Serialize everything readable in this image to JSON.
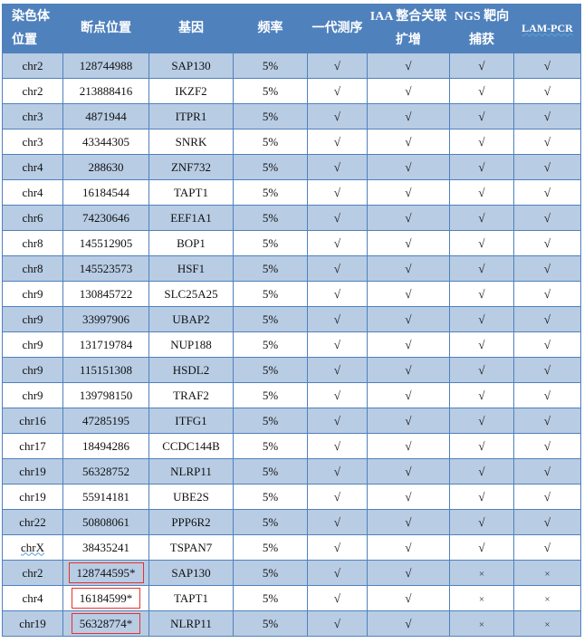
{
  "headers": [
    "染色体位置",
    "断点位置",
    "基因",
    "频率",
    "一代测序",
    "IAA 整合关联扩增",
    "NGS 靶向捕获",
    "LAM-PCR"
  ],
  "rows": [
    {
      "chr": "chr2",
      "pos": "128744988",
      "gene": "SAP130",
      "freq": "5%",
      "m": [
        "√",
        "√",
        "√",
        "√"
      ]
    },
    {
      "chr": "chr2",
      "pos": "213888416",
      "gene": "IKZF2",
      "freq": "5%",
      "m": [
        "√",
        "√",
        "√",
        "√"
      ]
    },
    {
      "chr": "chr3",
      "pos": "4871944",
      "gene": "ITPR1",
      "freq": "5%",
      "m": [
        "√",
        "√",
        "√",
        "√"
      ]
    },
    {
      "chr": "chr3",
      "pos": "43344305",
      "gene": "SNRK",
      "freq": "5%",
      "m": [
        "√",
        "√",
        "√",
        "√"
      ]
    },
    {
      "chr": "chr4",
      "pos": "288630",
      "gene": "ZNF732",
      "freq": "5%",
      "m": [
        "√",
        "√",
        "√",
        "√"
      ]
    },
    {
      "chr": "chr4",
      "pos": "16184544",
      "gene": "TAPT1",
      "freq": "5%",
      "m": [
        "√",
        "√",
        "√",
        "√"
      ]
    },
    {
      "chr": "chr6",
      "pos": "74230646",
      "gene": "EEF1A1",
      "freq": "5%",
      "m": [
        "√",
        "√",
        "√",
        "√"
      ]
    },
    {
      "chr": "chr8",
      "pos": "145512905",
      "gene": "BOP1",
      "freq": "5%",
      "m": [
        "√",
        "√",
        "√",
        "√"
      ]
    },
    {
      "chr": "chr8",
      "pos": "145523573",
      "gene": "HSF1",
      "freq": "5%",
      "m": [
        "√",
        "√",
        "√",
        "√"
      ]
    },
    {
      "chr": "chr9",
      "pos": "130845722",
      "gene": "SLC25A25",
      "freq": "5%",
      "m": [
        "√",
        "√",
        "√",
        "√"
      ]
    },
    {
      "chr": "chr9",
      "pos": "33997906",
      "gene": "UBAP2",
      "freq": "5%",
      "m": [
        "√",
        "√",
        "√",
        "√"
      ]
    },
    {
      "chr": "chr9",
      "pos": "131719784",
      "gene": "NUP188",
      "freq": "5%",
      "m": [
        "√",
        "√",
        "√",
        "√"
      ]
    },
    {
      "chr": "chr9",
      "pos": "115151308",
      "gene": "HSDL2",
      "freq": "5%",
      "m": [
        "√",
        "√",
        "√",
        "√"
      ]
    },
    {
      "chr": "chr9",
      "pos": "139798150",
      "gene": "TRAF2",
      "freq": "5%",
      "m": [
        "√",
        "√",
        "√",
        "√"
      ]
    },
    {
      "chr": "chr16",
      "pos": "47285195",
      "gene": "ITFG1",
      "freq": "5%",
      "m": [
        "√",
        "√",
        "√",
        "√"
      ]
    },
    {
      "chr": "chr17",
      "pos": "18494286",
      "gene": "CCDC144B",
      "freq": "5%",
      "m": [
        "√",
        "√",
        "√",
        "√"
      ]
    },
    {
      "chr": "chr19",
      "pos": "56328752",
      "gene": "NLRP11",
      "freq": "5%",
      "m": [
        "√",
        "√",
        "√",
        "√"
      ]
    },
    {
      "chr": "chr19",
      "pos": "55914181",
      "gene": "UBE2S",
      "freq": "5%",
      "m": [
        "√",
        "√",
        "√",
        "√"
      ]
    },
    {
      "chr": "chr22",
      "pos": "50808061",
      "gene": "PPP6R2",
      "freq": "5%",
      "m": [
        "√",
        "√",
        "√",
        "√"
      ]
    },
    {
      "chr": "chrX",
      "pos": "38435241",
      "gene": "TSPAN7",
      "freq": "5%",
      "m": [
        "√",
        "√",
        "√",
        "√"
      ]
    },
    {
      "chr": "chr2",
      "pos": "128744595*",
      "gene": "SAP130",
      "freq": "5%",
      "m": [
        "√",
        "√",
        "×",
        "×"
      ],
      "boxed": true
    },
    {
      "chr": "chr4",
      "pos": "16184599*",
      "gene": "TAPT1",
      "freq": "5%",
      "m": [
        "√",
        "√",
        "×",
        "×"
      ],
      "boxed": true
    },
    {
      "chr": "chr19",
      "pos": "56328774*",
      "gene": "NLRP11",
      "freq": "5%",
      "m": [
        "√",
        "√",
        "×",
        "×"
      ],
      "boxed": true
    }
  ],
  "colors": {
    "header": "#4f81bd",
    "band": "#b8cce4",
    "highlight_box": "#e8312b"
  }
}
